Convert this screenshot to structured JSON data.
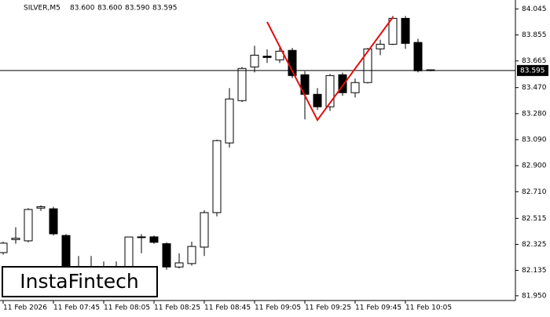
{
  "chart_data": {
    "type": "candlestick",
    "header": {
      "symbol": "SILVER,M5",
      "ohlc": [
        "83.600",
        "83.600",
        "83.590",
        "83.595"
      ]
    },
    "categories": [
      "11 Feb 2026",
      null,
      null,
      null,
      "11 Feb 07:45",
      null,
      null,
      null,
      "11 Feb 08:05",
      null,
      null,
      null,
      "11 Feb 08:25",
      null,
      null,
      null,
      "11 Feb 08:45",
      null,
      null,
      null,
      "11 Feb 09:05",
      null,
      null,
      null,
      "11 Feb 09:25",
      null,
      null,
      null,
      "11 Feb 09:45",
      null,
      null,
      null,
      "11 Feb 10:05",
      null,
      null
    ],
    "open": [
      82.265,
      82.36,
      82.351,
      82.59,
      82.585,
      82.39,
      82.1,
      82.15,
      82.14,
      82.13,
      82.162,
      82.38,
      82.38,
      82.33,
      82.16,
      82.185,
      82.305,
      82.557,
      83.066,
      83.375,
      83.621,
      83.7,
      83.673,
      83.742,
      83.564,
      83.421,
      83.33,
      83.564,
      83.433,
      83.507,
      83.753,
      83.787,
      83.976,
      83.8,
      83.6
    ],
    "high": [
      82.345,
      82.45,
      82.59,
      82.61,
      82.6,
      82.4,
      82.24,
      82.24,
      82.2,
      82.2,
      82.38,
      82.4,
      82.39,
      82.34,
      82.26,
      82.345,
      82.575,
      83.09,
      83.467,
      83.621,
      83.776,
      83.75,
      83.776,
      83.76,
      83.59,
      83.467,
      83.57,
      83.58,
      83.536,
      83.76,
      83.82,
      83.993,
      83.993,
      83.827,
      83.6
    ],
    "low": [
      82.25,
      82.33,
      82.34,
      82.57,
      82.39,
      82.08,
      82.08,
      82.1,
      82.1,
      82.1,
      82.15,
      82.26,
      82.33,
      82.14,
      82.15,
      82.17,
      82.24,
      82.53,
      83.032,
      83.364,
      83.581,
      83.65,
      83.65,
      83.54,
      83.238,
      83.307,
      83.3,
      83.41,
      83.398,
      83.5,
      83.707,
      83.781,
      83.753,
      83.581,
      83.59
    ],
    "close": [
      82.334,
      82.37,
      82.58,
      82.6,
      82.402,
      82.12,
      82.15,
      82.14,
      82.13,
      82.15,
      82.379,
      82.38,
      82.34,
      82.16,
      82.19,
      82.31,
      82.557,
      83.083,
      83.387,
      83.61,
      83.707,
      83.69,
      83.736,
      83.558,
      83.421,
      83.33,
      83.558,
      83.433,
      83.507,
      83.753,
      83.787,
      83.976,
      83.793,
      83.593,
      83.595
    ],
    "up_color": "#ffffff",
    "down_color": "#000000",
    "edge_color": "#000000",
    "ylim": [
      81.915,
      84.11
    ],
    "yticks": [
      84.045,
      83.855,
      83.665,
      {
        "value": 83.47,
        "label": "83.470"
      },
      {
        "value": 83.28,
        "label": "83.280"
      },
      {
        "value": 83.09,
        "label": "83.090"
      },
      {
        "value": 82.9,
        "label": "82.900"
      },
      {
        "value": 82.71,
        "label": "82.710"
      },
      82.515,
      82.325,
      82.135,
      {
        "value": 81.95,
        "label": "81.950"
      }
    ],
    "current_price": 83.595,
    "watermark": "InstaFintech"
  }
}
